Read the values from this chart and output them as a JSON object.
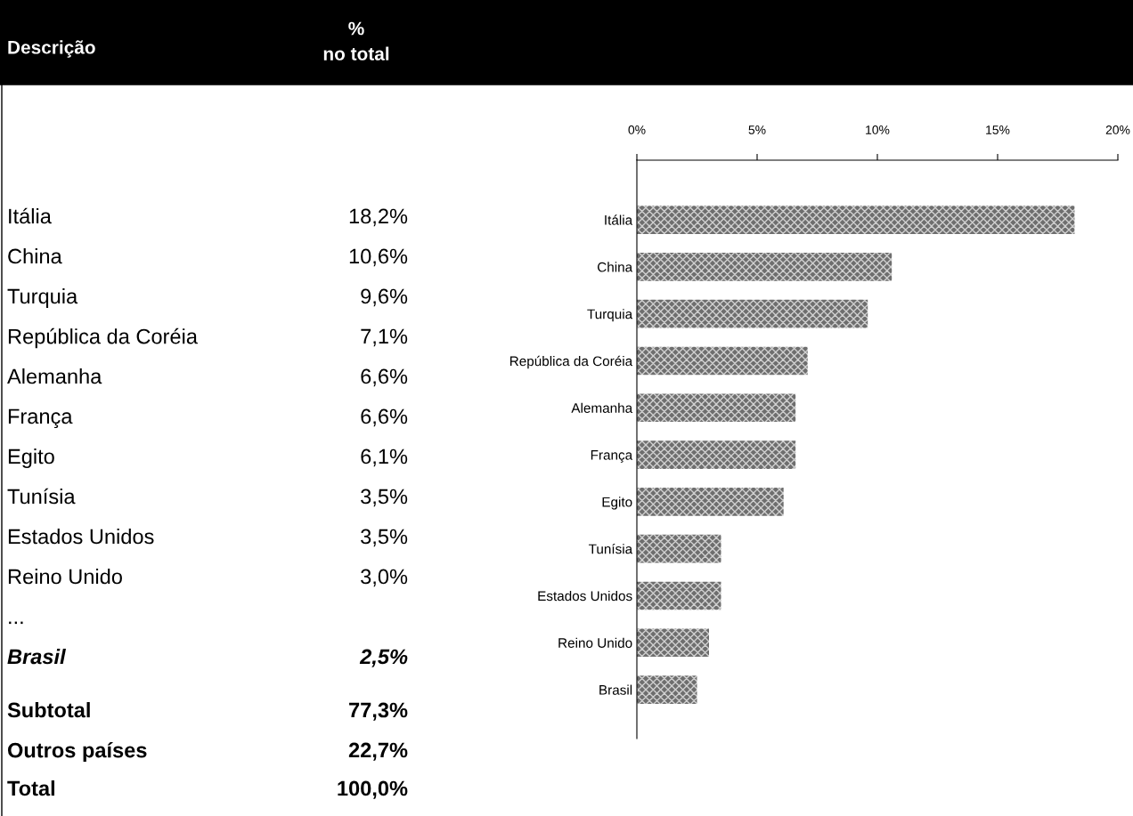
{
  "chart_data": {
    "type": "bar",
    "orientation": "horizontal",
    "categories": [
      "Itália",
      "China",
      "Turquia",
      "República da Coréia",
      "Alemanha",
      "França",
      "Egito",
      "Tunísia",
      "Estados Unidos",
      "Reino Unido",
      "Brasil"
    ],
    "values": [
      18.2,
      10.6,
      9.6,
      7.1,
      6.6,
      6.6,
      6.1,
      3.5,
      3.5,
      3.0,
      2.5
    ],
    "color": "#6e6e6e",
    "xlim": [
      0,
      20
    ],
    "xticks": [
      {
        "value": 0,
        "label": "0%"
      },
      {
        "value": 5,
        "label": "5%"
      },
      {
        "value": 10,
        "label": "10%"
      },
      {
        "value": 15,
        "label": "15%"
      },
      {
        "value": 20,
        "label": "20%"
      }
    ],
    "grid": false,
    "annotations": [
      "Descrição",
      "%\nno total",
      "18,2%",
      "10,6%",
      "9,6%",
      "7,1%",
      "6,6%",
      "6,6%",
      "6,1%",
      "3,5%",
      "3,5%",
      "3,0%",
      "2,5%",
      "...",
      "Subtotal",
      "77,3%",
      "Outros países",
      "22,7%",
      "Total",
      "100,0%"
    ]
  }
}
